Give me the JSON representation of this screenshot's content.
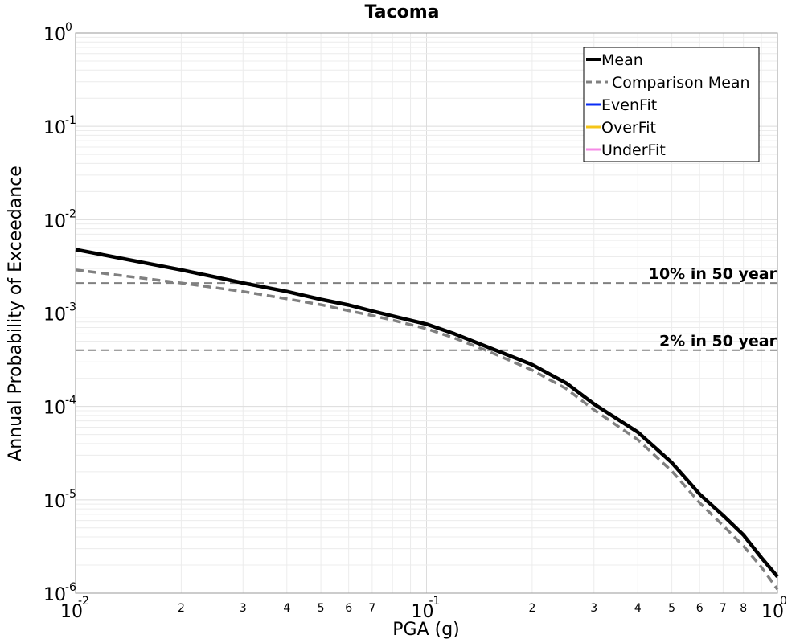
{
  "chart_data": {
    "type": "line",
    "title": "Tacoma",
    "xlabel": "PGA (g)",
    "ylabel": "Annual Probability of Exceedance",
    "xscale": "log",
    "yscale": "log",
    "xlim": [
      0.01,
      1
    ],
    "ylim": [
      1e-06,
      1
    ],
    "grid": true,
    "legend_position": "top-right",
    "x_major_ticks": [
      {
        "base": "10",
        "exp": "-2",
        "value": 0.01
      },
      {
        "base": "10",
        "exp": "-1",
        "value": 0.1
      },
      {
        "base": "10",
        "exp": "0",
        "value": 1
      }
    ],
    "x_minor_ticks": [
      {
        "label": "2",
        "value": 0.02
      },
      {
        "label": "3",
        "value": 0.03
      },
      {
        "label": "4",
        "value": 0.04
      },
      {
        "label": "5",
        "value": 0.05
      },
      {
        "label": "6",
        "value": 0.06
      },
      {
        "label": "7",
        "value": 0.07
      },
      {
        "label": "2",
        "value": 0.2
      },
      {
        "label": "3",
        "value": 0.3
      },
      {
        "label": "4",
        "value": 0.4
      },
      {
        "label": "5",
        "value": 0.5
      },
      {
        "label": "6",
        "value": 0.6
      },
      {
        "label": "7",
        "value": 0.7
      },
      {
        "label": "8",
        "value": 0.8
      }
    ],
    "y_major_ticks": [
      {
        "base": "10",
        "exp": "0",
        "value": 1
      },
      {
        "base": "10",
        "exp": "-1",
        "value": 0.1
      },
      {
        "base": "10",
        "exp": "-2",
        "value": 0.01
      },
      {
        "base": "10",
        "exp": "-3",
        "value": 0.001
      },
      {
        "base": "10",
        "exp": "-4",
        "value": 0.0001
      },
      {
        "base": "10",
        "exp": "-5",
        "value": 1e-05
      },
      {
        "base": "10",
        "exp": "-6",
        "value": 1e-06
      }
    ],
    "reference_lines": [
      {
        "label": "10% in 50 year",
        "y": 0.0021
      },
      {
        "label": "2% in 50 year",
        "y": 0.0004
      }
    ],
    "series": [
      {
        "name": "Mean",
        "color": "#000000",
        "style": "solid",
        "x": [
          0.01,
          0.02,
          0.03,
          0.04,
          0.05,
          0.06,
          0.07,
          0.08,
          0.1,
          0.12,
          0.15,
          0.2,
          0.25,
          0.3,
          0.4,
          0.5,
          0.6,
          0.7,
          0.8,
          0.9,
          1.0
        ],
        "y": [
          0.0048,
          0.0029,
          0.0021,
          0.0017,
          0.0014,
          0.00122,
          0.00105,
          0.00093,
          0.00076,
          0.0006,
          0.00043,
          0.00028,
          0.000178,
          0.000106,
          5.3e-05,
          2.5e-05,
          1.15e-05,
          6.8e-06,
          4.2e-06,
          2.4e-06,
          1.5e-06
        ]
      },
      {
        "name": "Comparison Mean",
        "color": "#808080",
        "style": "dashed",
        "x": [
          0.01,
          0.02,
          0.03,
          0.04,
          0.05,
          0.06,
          0.07,
          0.08,
          0.1,
          0.12,
          0.15,
          0.2,
          0.25,
          0.3,
          0.4,
          0.5,
          0.6,
          0.7,
          0.8,
          0.9,
          1.0
        ],
        "y": [
          0.0029,
          0.0021,
          0.0017,
          0.00142,
          0.00123,
          0.00106,
          0.00094,
          0.00084,
          0.00068,
          0.00054,
          0.00039,
          0.000245,
          0.000155,
          9.2e-05,
          4.4e-05,
          2.03e-05,
          9.3e-06,
          5.3e-06,
          3.2e-06,
          1.9e-06,
          1.1e-06
        ]
      },
      {
        "name": "EvenFit",
        "color": "#0a2cf5",
        "style": "solid",
        "x": [],
        "y": []
      },
      {
        "name": "OverFit",
        "color": "#f5c518",
        "style": "solid",
        "x": [],
        "y": []
      },
      {
        "name": "UnderFit",
        "color": "#f58ae6",
        "style": "solid",
        "x": [],
        "y": []
      }
    ]
  }
}
